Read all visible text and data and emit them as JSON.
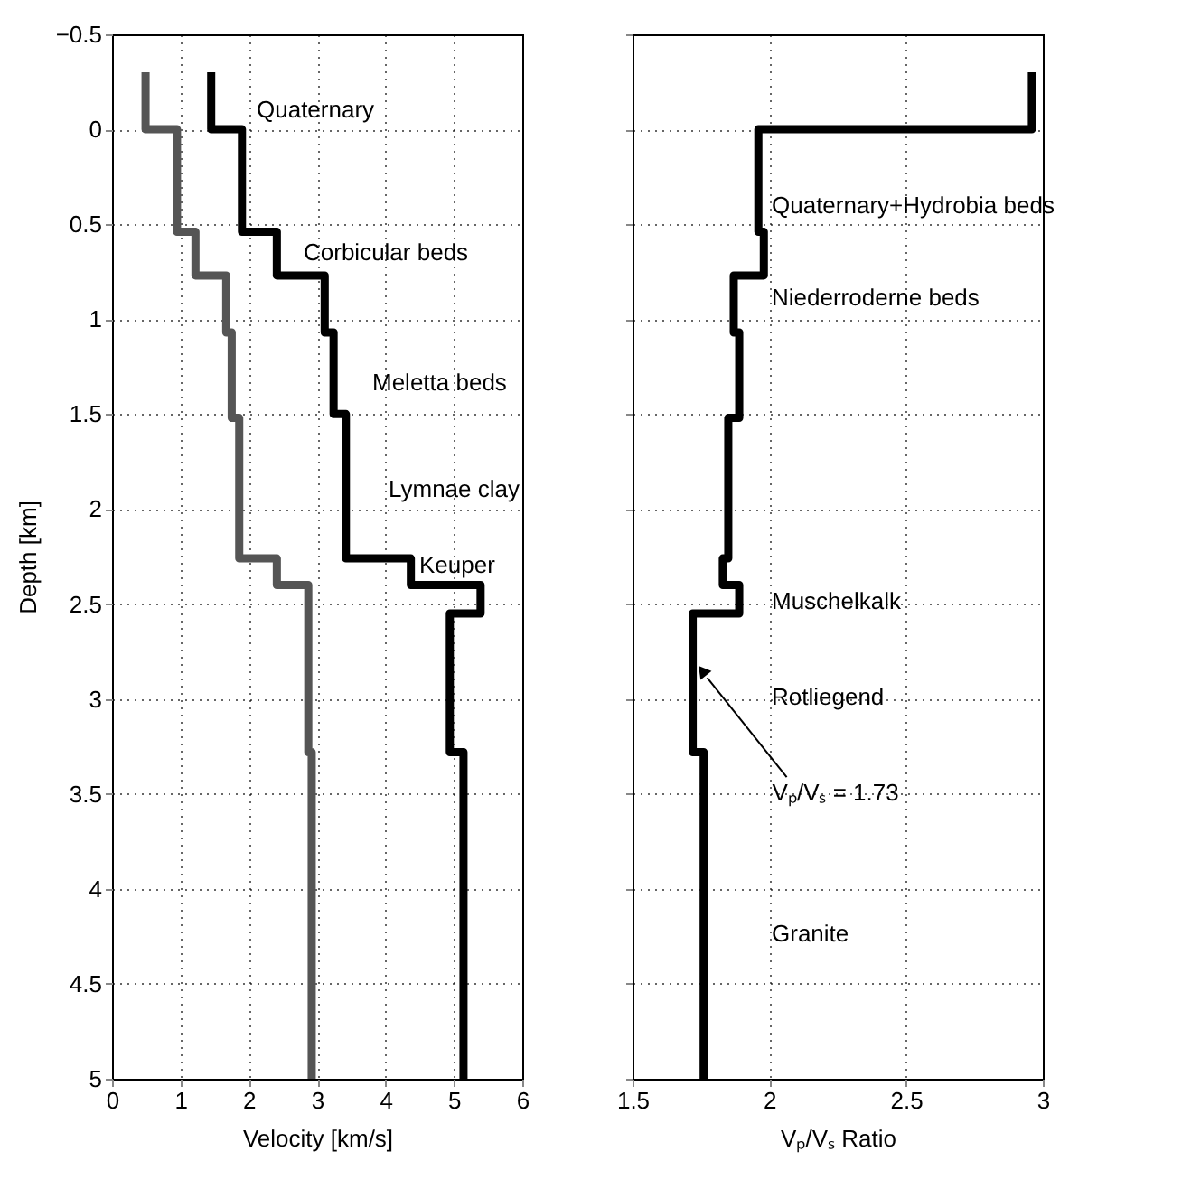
{
  "chart_data": [
    {
      "type": "line",
      "xlabel": "Velocity [km/s]",
      "ylabel": "Depth [km]",
      "xlim": [
        0,
        6
      ],
      "xticks": [
        0,
        1,
        2,
        3,
        4,
        5,
        6
      ],
      "ylim": [
        5,
        -0.5
      ],
      "yticks": [
        -0.5,
        0,
        0.5,
        1,
        1.5,
        2,
        2.5,
        3,
        3.5,
        4,
        4.5,
        5
      ],
      "grid": true,
      "line_style": "solid",
      "marker": "none",
      "series": [
        {
          "color": "#000000",
          "x": [
            1.45,
            1.45,
            1.9,
            1.9,
            2.41,
            2.41,
            3.11,
            3.11,
            3.24,
            3.24,
            3.42,
            3.42,
            4.37,
            4.37,
            5.39,
            5.39,
            4.94,
            4.94,
            5.14,
            5.14
          ],
          "values": [
            -0.3,
            0,
            0,
            0.54,
            0.54,
            0.77,
            0.77,
            1.07,
            1.07,
            1.5,
            1.5,
            2.26,
            2.26,
            2.4,
            2.4,
            2.55,
            2.55,
            3.28,
            3.28,
            5
          ]
        },
        {
          "color": "#555555",
          "x": [
            0.49,
            0.49,
            0.95,
            0.95,
            1.22,
            1.22,
            1.67,
            1.67,
            1.75,
            1.75,
            1.86,
            1.86,
            2.41,
            2.41,
            2.87,
            2.87,
            2.92,
            2.92
          ],
          "values": [
            -0.3,
            0,
            0,
            0.54,
            0.54,
            0.77,
            0.77,
            1.07,
            1.07,
            1.52,
            1.52,
            2.26,
            2.26,
            2.4,
            2.4,
            3.28,
            3.28,
            5
          ]
        }
      ],
      "annotations": [
        "Quaternary",
        "Corbicular beds",
        "Meletta beds",
        "Lymnae clay",
        "Keuper"
      ]
    },
    {
      "type": "line",
      "xlabel": "Vₚ/Vₛ Ratio",
      "xlim": [
        1.5,
        3
      ],
      "xticks": [
        1.5,
        2,
        2.5,
        3
      ],
      "ylim": [
        5,
        -0.5
      ],
      "yticks": [
        -0.5,
        0,
        0.5,
        1,
        1.5,
        2,
        2.5,
        3,
        3.5,
        4,
        4.5,
        5
      ],
      "grid": true,
      "tick_labels": "x",
      "line_style": "solid",
      "marker": "none",
      "series": [
        {
          "color": "#000000",
          "x": [
            2.96,
            2.96,
            1.96,
            1.96,
            1.98,
            1.98,
            1.87,
            1.87,
            1.89,
            1.89,
            1.85,
            1.85,
            1.83,
            1.83,
            1.89,
            1.89,
            1.72,
            1.72,
            1.76,
            1.76
          ],
          "values": [
            -0.3,
            0,
            0,
            0.54,
            0.54,
            0.77,
            0.77,
            1.07,
            1.07,
            1.52,
            1.52,
            2.26,
            2.26,
            2.4,
            2.4,
            2.55,
            2.55,
            3.28,
            3.28,
            5
          ]
        }
      ],
      "annotations": [
        "Quaternary+Hydrobia beds",
        "Niederroderne beds",
        "Muschelkalk",
        "Rotliegend",
        {
          "text": "Vₚ/Vₛ = 1.73",
          "x": 1.72,
          "y": 2.85
        },
        "Granite"
      ]
    }
  ]
}
